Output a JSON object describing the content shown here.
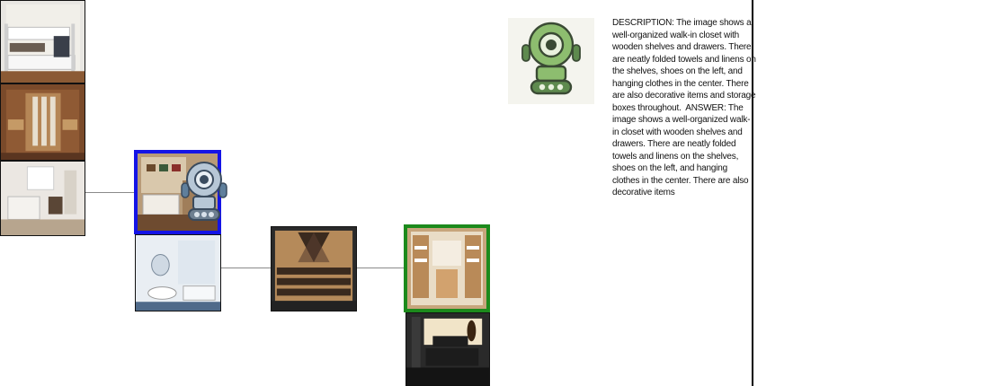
{
  "output": {
    "text": "DESCRIPTION: The image shows a well-organized walk-in closet with wooden shelves and drawers. There are neatly folded towels and linens on the shelves, shoes on the left, and hanging clothes in the center. There are also decorative items and storage boxes throughout.  ANSWER: The image shows a well-organized walk-in closet with wooden shelves and drawers. There are neatly folded towels and linens on the shelves, shoes on the left, and hanging clothes in the center. There are also decorative items"
  },
  "icons": {
    "agent_avatar": "green-robot-icon",
    "current_position_marker": "gray-robot-icon"
  },
  "colors": {
    "current_node_border": "#1414e6",
    "target_node_border": "#1c8a1c",
    "edge": "#8a8a8a",
    "divider": "#000000"
  }
}
